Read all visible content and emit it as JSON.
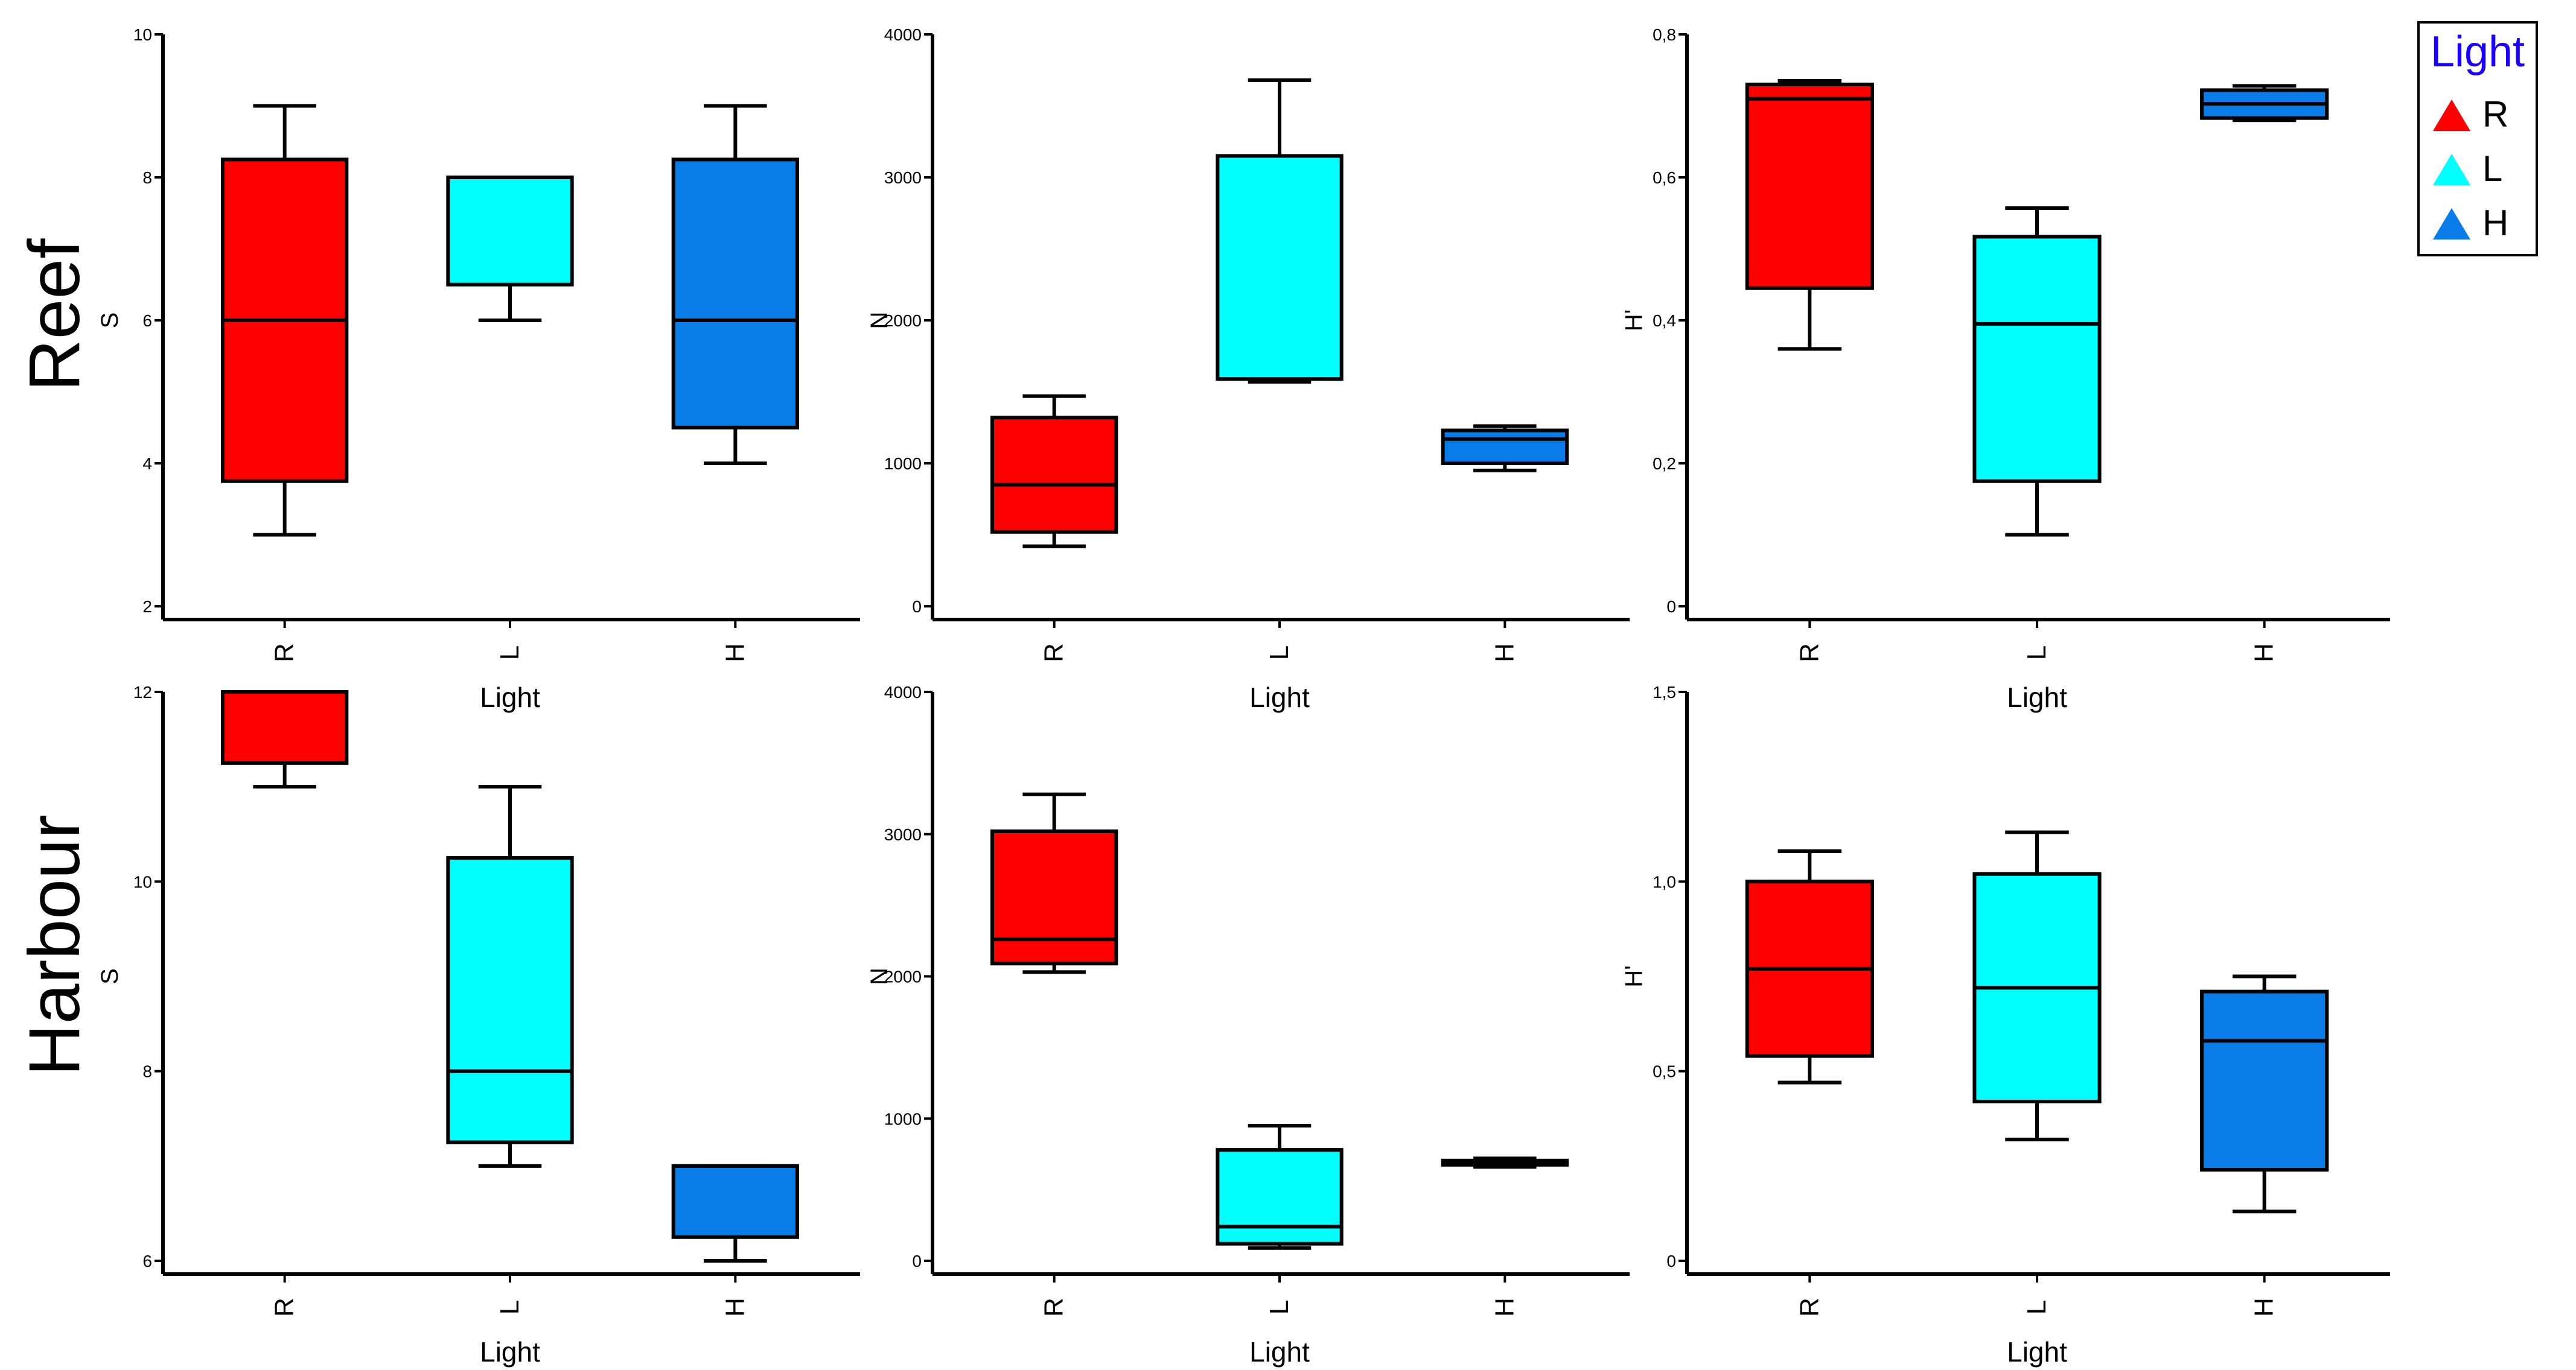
{
  "figure": {
    "row_labels": [
      "Reef",
      "Harbour"
    ]
  },
  "legend": {
    "title": "Light",
    "title_color": "#1a00ff",
    "items": [
      {
        "label": "R",
        "color": "#ff0000"
      },
      {
        "label": "L",
        "color": "#00ffff"
      },
      {
        "label": "H",
        "color": "#0a7ce8"
      }
    ]
  },
  "chart_data": [
    {
      "id": "reef-s",
      "type": "box",
      "row": "Reef",
      "ylabel": "S",
      "xlabel": "Light",
      "categories": [
        "R",
        "L",
        "H"
      ],
      "ylim": [
        2,
        10
      ],
      "yticks": [
        2,
        4,
        6,
        8,
        10
      ],
      "ytick_labels": [
        "2",
        "4",
        "6",
        "8",
        "10"
      ],
      "boxes": [
        {
          "cat": "R",
          "min": 3,
          "q1": 3.75,
          "median": 6,
          "q3": 8.25,
          "max": 9
        },
        {
          "cat": "L",
          "min": 6,
          "q1": 6.5,
          "median": 8,
          "q3": 8,
          "max": 8
        },
        {
          "cat": "H",
          "min": 4,
          "q1": 4.5,
          "median": 6,
          "q3": 8.25,
          "max": 9
        }
      ]
    },
    {
      "id": "reef-n",
      "type": "box",
      "row": "Reef",
      "ylabel": "N",
      "xlabel": "Light",
      "categories": [
        "R",
        "L",
        "H"
      ],
      "ylim": [
        0,
        4000
      ],
      "yticks": [
        0,
        1000,
        2000,
        3000,
        4000
      ],
      "ytick_labels": [
        "0",
        "1000",
        "2000",
        "3000",
        "4000"
      ],
      "boxes": [
        {
          "cat": "R",
          "min": 420,
          "q1": 520,
          "median": 850,
          "q3": 1320,
          "max": 1470
        },
        {
          "cat": "L",
          "min": 1570,
          "q1": 1590,
          "median": 1590,
          "q3": 3150,
          "max": 3680
        },
        {
          "cat": "H",
          "min": 950,
          "q1": 1000,
          "median": 1170,
          "q3": 1230,
          "max": 1260
        }
      ]
    },
    {
      "id": "reef-h",
      "type": "box",
      "row": "Reef",
      "ylabel": "H'",
      "xlabel": "Light",
      "categories": [
        "R",
        "L",
        "H"
      ],
      "ylim": [
        0,
        0.8
      ],
      "yticks": [
        0,
        0.2,
        0.4,
        0.6,
        0.8
      ],
      "ytick_labels": [
        "0",
        "0,2",
        "0,4",
        "0,6",
        "0,8"
      ],
      "boxes": [
        {
          "cat": "R",
          "min": 0.36,
          "q1": 0.445,
          "median": 0.71,
          "q3": 0.73,
          "max": 0.735
        },
        {
          "cat": "L",
          "min": 0.1,
          "q1": 0.175,
          "median": 0.395,
          "q3": 0.517,
          "max": 0.557
        },
        {
          "cat": "H",
          "min": 0.68,
          "q1": 0.683,
          "median": 0.703,
          "q3": 0.722,
          "max": 0.728
        }
      ]
    },
    {
      "id": "harbour-s",
      "type": "box",
      "row": "Harbour",
      "ylabel": "S",
      "xlabel": "Light",
      "categories": [
        "R",
        "L",
        "H"
      ],
      "ylim": [
        6,
        12
      ],
      "yticks": [
        6,
        8,
        10,
        12
      ],
      "ytick_labels": [
        "6",
        "8",
        "10",
        "12"
      ],
      "boxes": [
        {
          "cat": "R",
          "min": 11,
          "q1": 11.25,
          "median": 12,
          "q3": 12,
          "max": 12
        },
        {
          "cat": "L",
          "min": 7,
          "q1": 7.25,
          "median": 8,
          "q3": 10.25,
          "max": 11
        },
        {
          "cat": "H",
          "min": 6,
          "q1": 6.25,
          "median": 7,
          "q3": 7,
          "max": 7
        }
      ]
    },
    {
      "id": "harbour-n",
      "type": "box",
      "row": "Harbour",
      "ylabel": "N",
      "xlabel": "Light",
      "categories": [
        "R",
        "L",
        "H"
      ],
      "ylim": [
        0,
        4000
      ],
      "yticks": [
        0,
        1000,
        2000,
        3000,
        4000
      ],
      "ytick_labels": [
        "0",
        "1000",
        "2000",
        "3000",
        "4000"
      ],
      "boxes": [
        {
          "cat": "R",
          "min": 2030,
          "q1": 2090,
          "median": 2260,
          "q3": 3020,
          "max": 3280
        },
        {
          "cat": "L",
          "min": 90,
          "q1": 120,
          "median": 240,
          "q3": 780,
          "max": 950
        },
        {
          "cat": "H",
          "min": 660,
          "q1": 675,
          "median": 690,
          "q3": 705,
          "max": 720
        }
      ]
    },
    {
      "id": "harbour-h",
      "type": "box",
      "row": "Harbour",
      "ylabel": "H'",
      "xlabel": "Light",
      "categories": [
        "R",
        "L",
        "H"
      ],
      "ylim": [
        0,
        1.5
      ],
      "yticks": [
        0,
        0.5,
        1.0,
        1.5
      ],
      "ytick_labels": [
        "0",
        "0,5",
        "1,0",
        "1,5"
      ],
      "boxes": [
        {
          "cat": "R",
          "min": 0.47,
          "q1": 0.54,
          "median": 0.77,
          "q3": 1.0,
          "max": 1.08
        },
        {
          "cat": "L",
          "min": 0.32,
          "q1": 0.42,
          "median": 0.72,
          "q3": 1.02,
          "max": 1.13
        },
        {
          "cat": "H",
          "min": 0.13,
          "q1": 0.24,
          "median": 0.58,
          "q3": 0.71,
          "max": 0.75
        }
      ]
    }
  ]
}
